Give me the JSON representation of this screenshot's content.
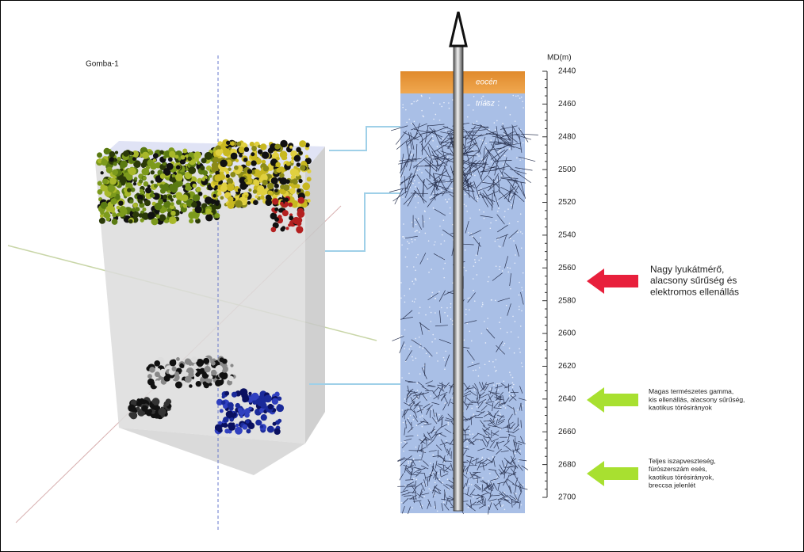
{
  "well_name": "Gomba-1",
  "depth_axis": {
    "label": "MD(m)",
    "ticks": [
      2440,
      2460,
      2480,
      2500,
      2520,
      2540,
      2560,
      2580,
      2600,
      2620,
      2640,
      2660,
      2680,
      2700
    ]
  },
  "layers": [
    "eocén",
    "triász"
  ],
  "annotations": [
    {
      "lines": [
        "Nagy lyukátmérő,",
        "alacsony sűrűség és",
        "elektromos ellenállás"
      ]
    },
    {
      "lines": [
        "Magas természetes gamma,",
        "kis ellenállás, alacsony sűrűség,",
        "kaotikus törésirányok"
      ]
    },
    {
      "lines": [
        "Teljes iszapveszteség,",
        "fúrószerszám esés,",
        "kaotikus törésirányok,",
        "breccsa jelenlét"
      ]
    }
  ]
}
